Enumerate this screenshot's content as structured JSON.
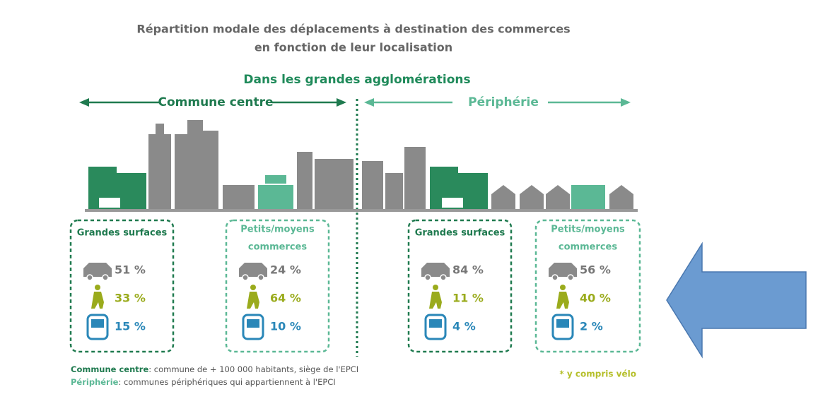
{
  "header": {
    "title_lines": [
      "Répartition modale des déplacements à destination des commerces",
      "en fonction de leur localisation"
    ],
    "subtitle": "Dans les grandes agglomérations"
  },
  "zones": [
    "Commune centre",
    "Périphérie"
  ],
  "panels": [
    {
      "label": [
        "Grandes surfaces"
      ],
      "car": "51 %",
      "walk": "33 %",
      "transit": "15 %"
    },
    {
      "label": [
        "Petits/moyens",
        "commerces"
      ],
      "car": "24 %",
      "walk": "64 %",
      "transit": "10 %"
    },
    {
      "label": [
        "Grandes surfaces"
      ],
      "car": "84 %",
      "walk": "11 %",
      "transit": "4 %"
    },
    {
      "label": [
        "Petits/moyens",
        "commerces"
      ],
      "car": "56 %",
      "walk": "40 %",
      "transit": "2 %"
    }
  ],
  "footnotes": [
    {
      "term": "Commune centre",
      "text": ": commune de + 100 000 habitants, siège de l'EPCI"
    },
    {
      "term": "Périphérie",
      "text": ": communes périphériques qui appartiennent à l'EPCI"
    }
  ],
  "note": "* y compris vélo"
}
